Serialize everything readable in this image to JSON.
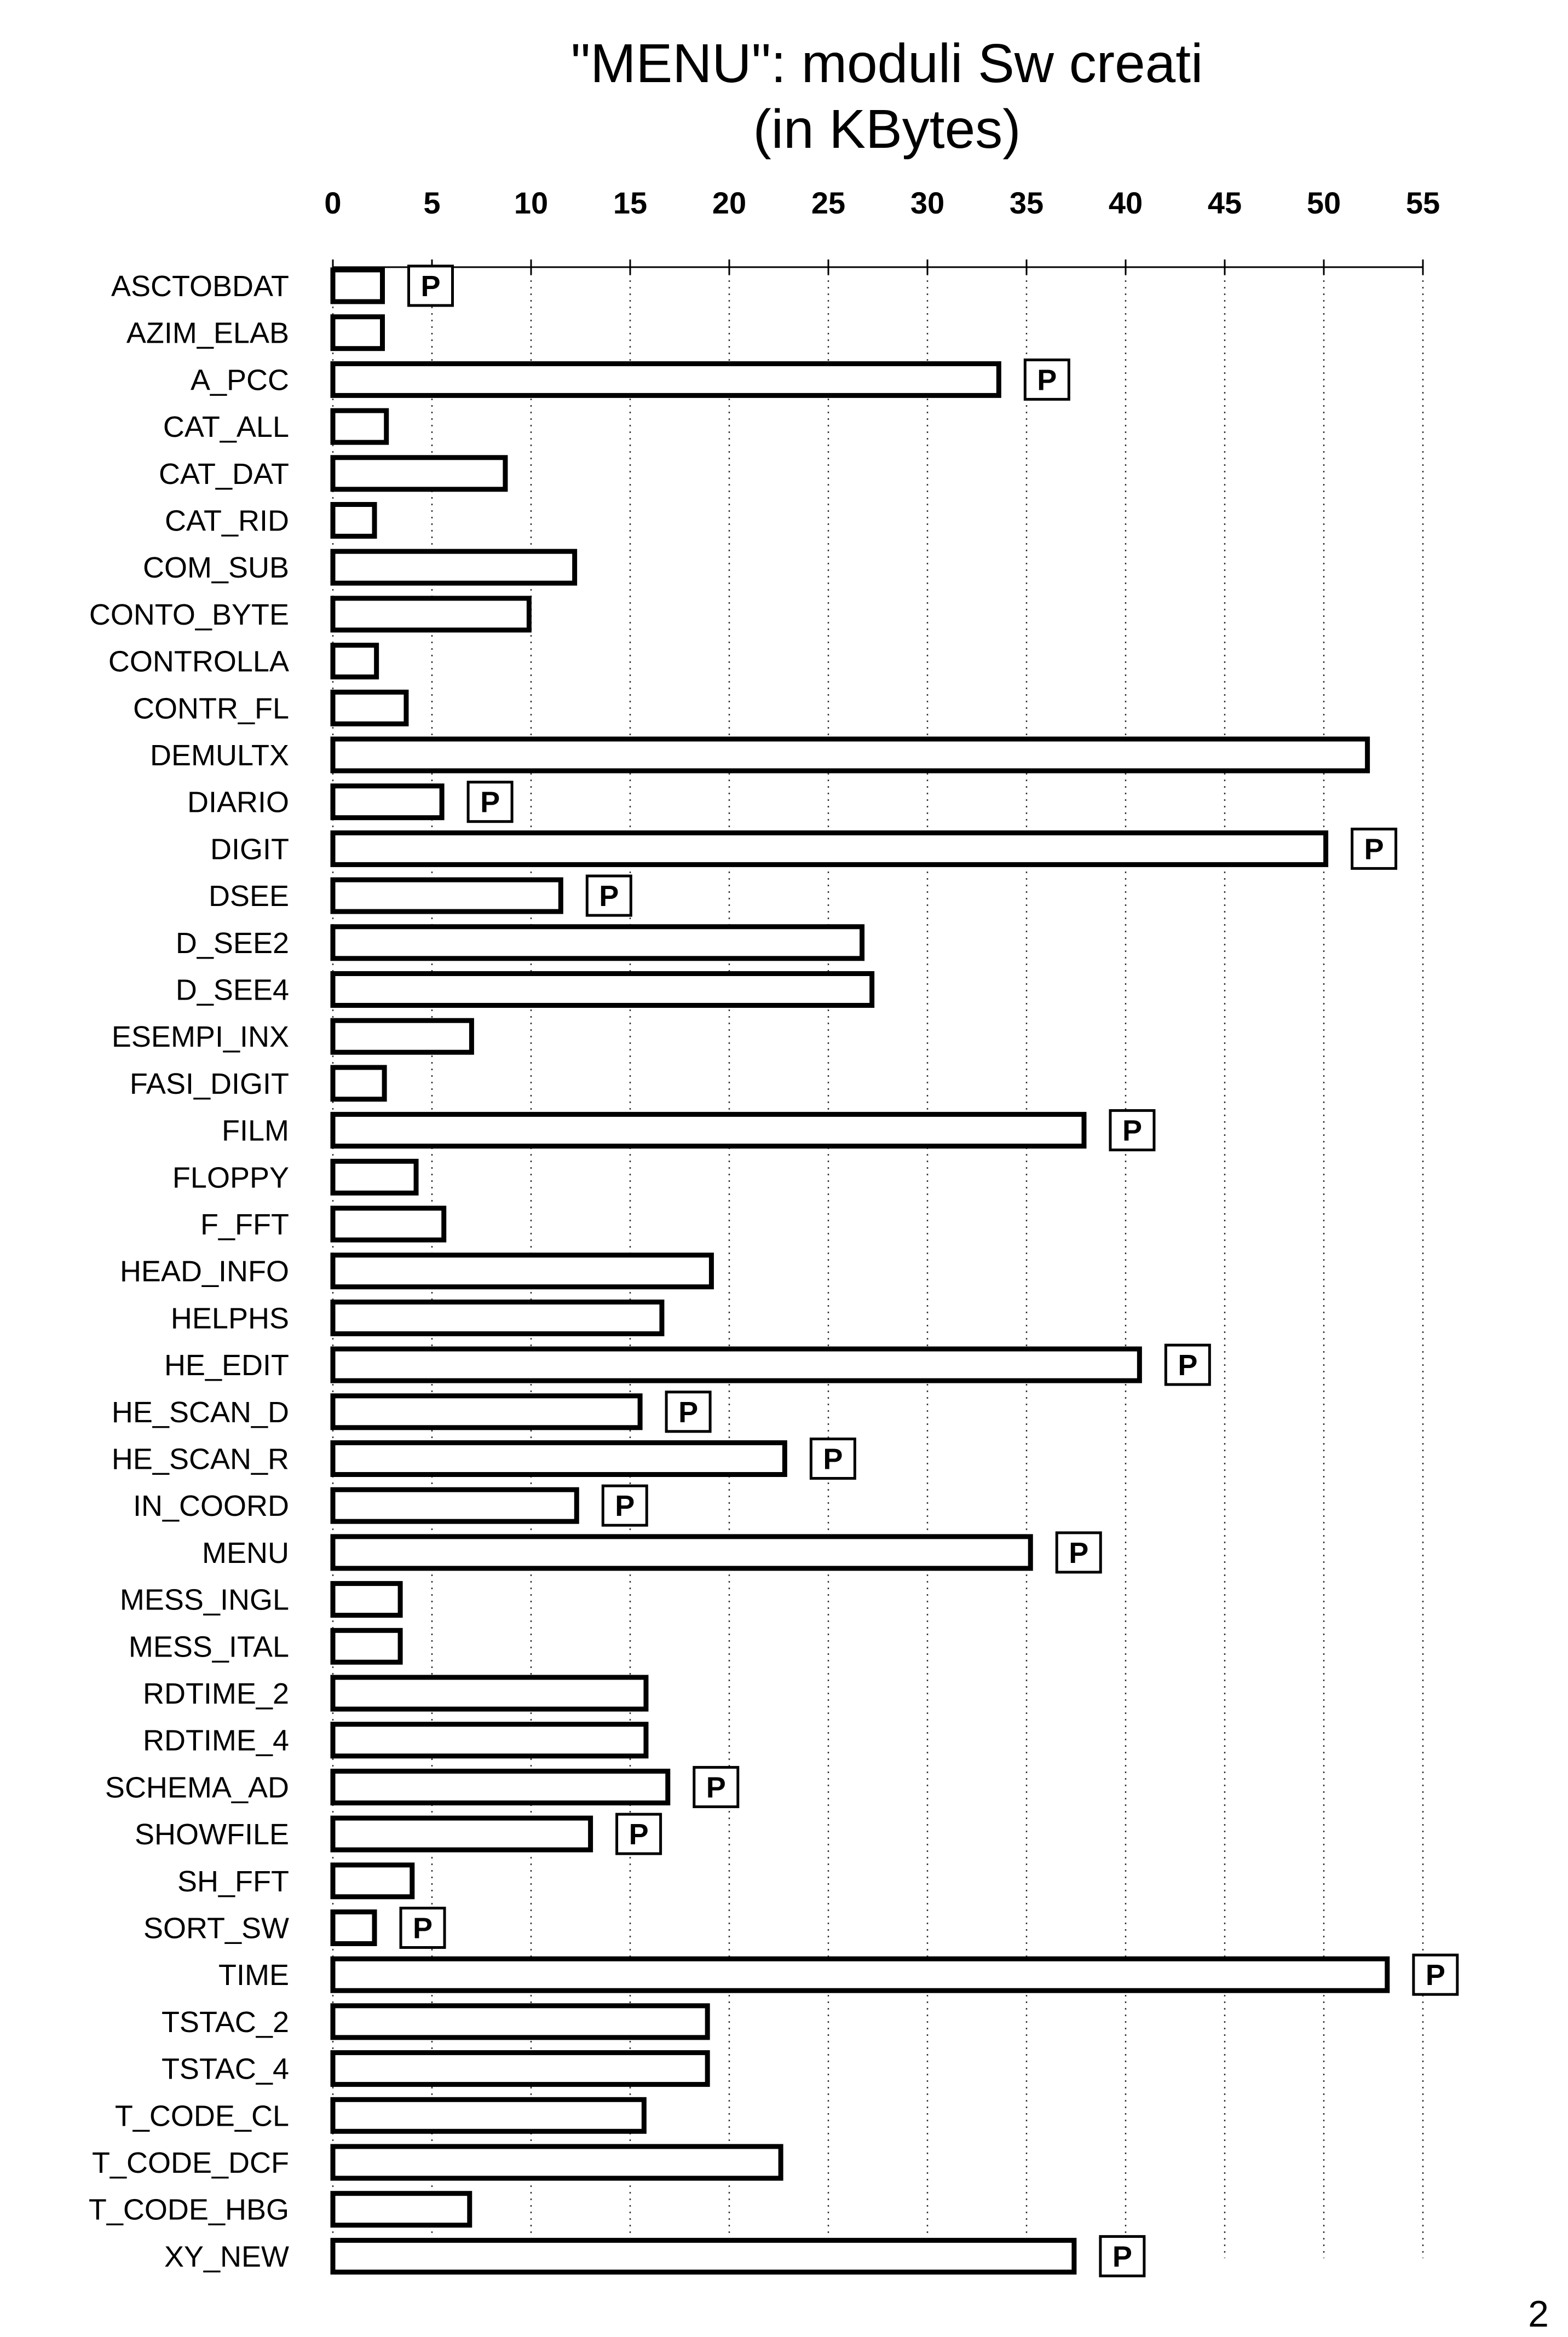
{
  "page": {
    "page_number": "2"
  },
  "chart_data": {
    "type": "bar",
    "orientation": "horizontal",
    "title_lines": [
      "\"MENU\": moduli Sw creati",
      "(in KBytes)"
    ],
    "xlabel": "",
    "ylabel": "",
    "xlim": [
      0,
      55
    ],
    "x_ticks": [
      0,
      5,
      10,
      15,
      20,
      25,
      30,
      35,
      40,
      45,
      50,
      55
    ],
    "x_tick_labels": [
      "0",
      "5",
      "10",
      "15",
      "20",
      "25",
      "30",
      "35",
      "40",
      "45",
      "50",
      "55"
    ],
    "grid": "vertical dotted",
    "marker_label": "P",
    "colors": {
      "bar_fill": "#ffffff",
      "bar_stroke": "#000000",
      "grid": "#333333"
    },
    "categories": [
      "ASCTOBDAT",
      "AZIM_ELAB",
      "A_PCC",
      "CAT_ALL",
      "CAT_DAT",
      "CAT_RID",
      "COM_SUB",
      "CONTO_BYTE",
      "CONTROLLA",
      "CONTR_FL",
      "DEMULTX",
      "DIARIO",
      "DIGIT",
      "DSEE",
      "D_SEE2",
      "D_SEE4",
      "ESEMPI_INX",
      "FASI_DIGIT",
      "FILM",
      "FLOPPY",
      "F_FFT",
      "HEAD_INFO",
      "HELPHS",
      "HE_EDIT",
      "HE_SCAN_D",
      "HE_SCAN_R",
      "IN_COORD",
      "MENU",
      "MESS_INGL",
      "MESS_ITAL",
      "RDTIME_2",
      "RDTIME_4",
      "SCHEMA_AD",
      "SHOWFILE",
      "SH_FFT",
      "SORT_SW",
      "TIME",
      "TSTAC_2",
      "TSTAC_4",
      "T_CODE_CL",
      "T_CODE_DCF",
      "T_CODE_HBG",
      "XY_NEW"
    ],
    "values": [
      2.5,
      2.5,
      33.6,
      2.7,
      8.7,
      2.1,
      12.2,
      9.9,
      2.2,
      3.7,
      52.2,
      5.5,
      50.1,
      11.5,
      26.7,
      27.2,
      7.0,
      2.6,
      37.9,
      4.2,
      5.6,
      19.1,
      16.6,
      40.7,
      15.5,
      22.8,
      12.3,
      35.2,
      3.4,
      3.4,
      15.8,
      15.8,
      16.9,
      13.0,
      4.0,
      2.1,
      53.2,
      18.9,
      18.9,
      15.7,
      22.6,
      6.9,
      37.4
    ],
    "marked": [
      "ASCTOBDAT",
      "A_PCC",
      "DIARIO",
      "DIGIT",
      "DSEE",
      "FILM",
      "HE_EDIT",
      "HE_SCAN_D",
      "HE_SCAN_R",
      "IN_COORD",
      "MENU",
      "SCHEMA_AD",
      "SHOWFILE",
      "SORT_SW",
      "TIME",
      "XY_NEW"
    ]
  }
}
